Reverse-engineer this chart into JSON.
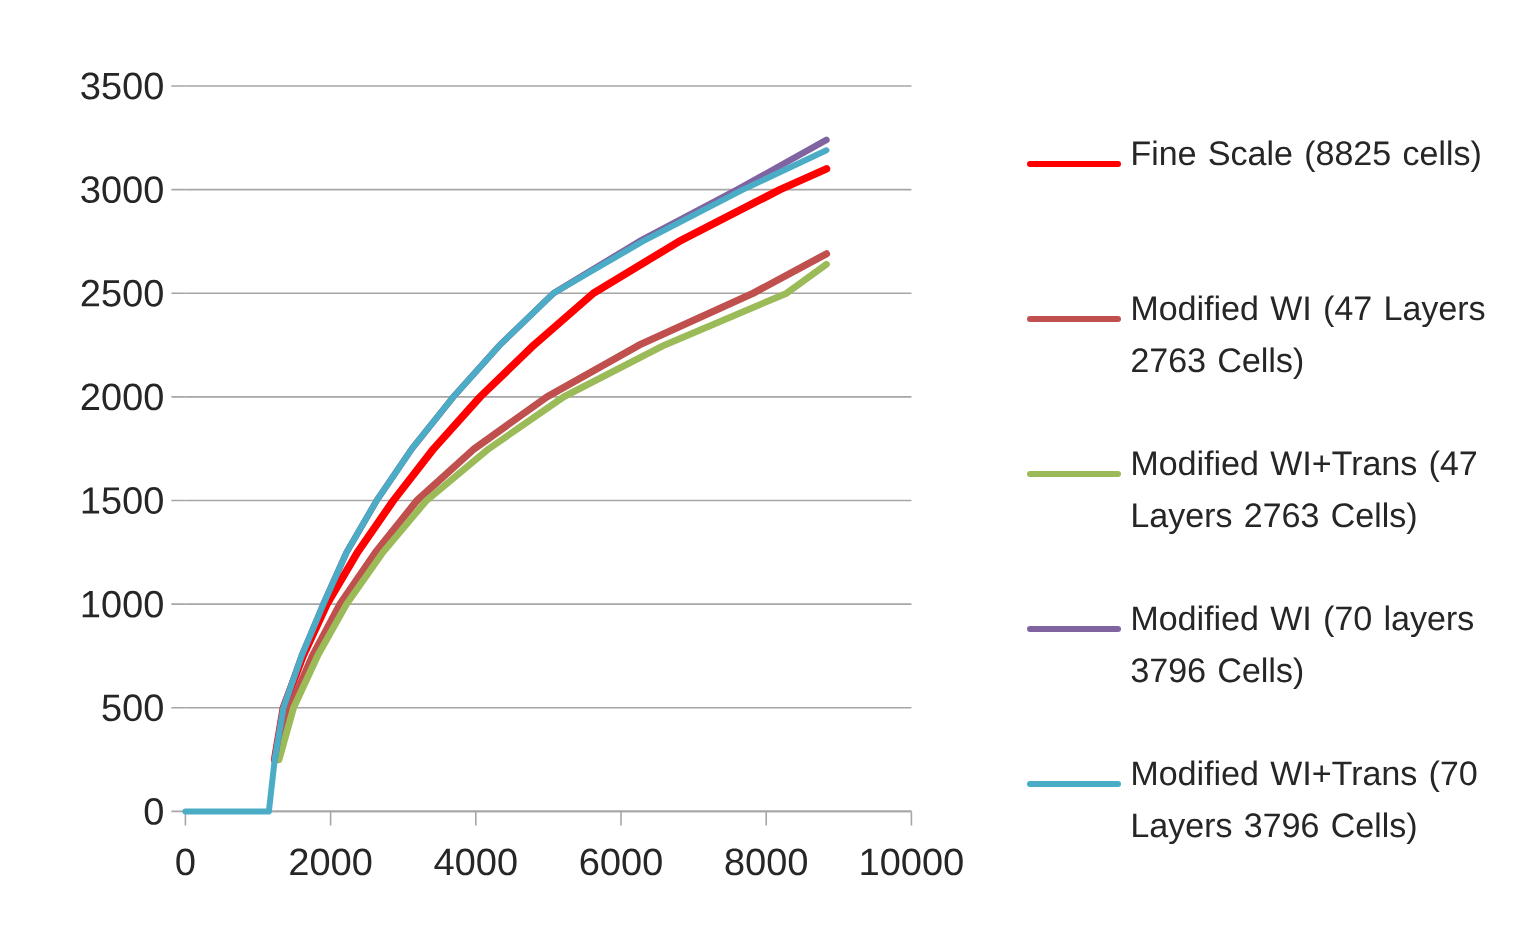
{
  "chart_data": {
    "type": "line",
    "xlim": [
      0,
      10000
    ],
    "xticks": [
      0,
      2000,
      4000,
      6000,
      8000,
      10000
    ],
    "ylim": [
      0,
      3500
    ],
    "yticks": [
      0,
      500,
      1000,
      1500,
      2000,
      2500,
      3000,
      3500
    ],
    "grid": "y",
    "legend": "right",
    "marker": "none",
    "line_style": "solid",
    "series": [
      {
        "name": "Fine Scale (8825 cells)",
        "color": "#ff0000",
        "x": [
          1230,
          1350,
          1620,
          1950,
          2370,
          2865,
          3420,
          4060,
          4800,
          5620,
          6800,
          8190,
          8830
        ],
        "values": [
          250,
          500,
          750,
          1000,
          1250,
          1500,
          1750,
          2000,
          2250,
          2500,
          2750,
          3000,
          3100
        ]
      },
      {
        "name": "Modified WI (47 Layers 2763 Cells)",
        "color": "#c0504d",
        "x": [
          1270,
          1440,
          1750,
          2130,
          2620,
          3190,
          3980,
          4980,
          6250,
          7820,
          8830
        ],
        "values": [
          250,
          500,
          750,
          1000,
          1250,
          1500,
          1750,
          2000,
          2250,
          2500,
          2690
        ]
      },
      {
        "name": "Modified WI+Trans (47 Layers 2763 Cells)",
        "color": "#9bbb59",
        "x": [
          1290,
          1490,
          1820,
          2220,
          2720,
          3320,
          4180,
          5210,
          6600,
          8280,
          8830
        ],
        "values": [
          250,
          500,
          750,
          1000,
          1250,
          1500,
          1750,
          2000,
          2250,
          2500,
          2640
        ]
      },
      {
        "name": "Modified WI (70 layers 3796 Cells)",
        "color": "#8064a2",
        "x": [
          1230,
          1350,
          1600,
          1900,
          2220,
          2635,
          3120,
          3690,
          4330,
          5070,
          6250,
          7600,
          8830
        ],
        "values": [
          250,
          500,
          750,
          1000,
          1250,
          1500,
          1750,
          2000,
          2250,
          2500,
          2750,
          3000,
          3240
        ]
      },
      {
        "name": "Modified WI+Trans (70 Layers 3796 Cells)",
        "color": "#4bacc6",
        "x": [
          0,
          1150,
          1230,
          1350,
          1600,
          1900,
          2220,
          2635,
          3120,
          3690,
          4330,
          5070,
          6300,
          7680,
          8830
        ],
        "values": [
          0,
          0,
          250,
          500,
          750,
          1000,
          1250,
          1500,
          1750,
          2000,
          2250,
          2500,
          2750,
          3000,
          3190
        ]
      }
    ]
  }
}
